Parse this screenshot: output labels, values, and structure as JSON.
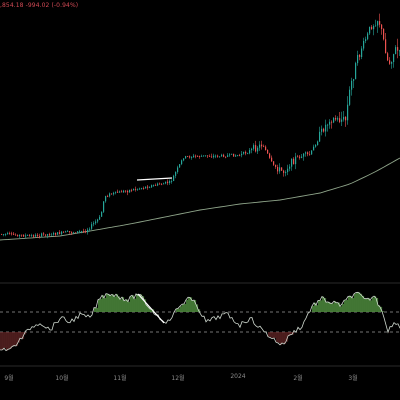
{
  "header": {
    "price_text": ",854.18 -994.02 (-0.94%)"
  },
  "colors": {
    "background": "#000000",
    "up_candle": "#26a69a",
    "down_candle": "#ef5350",
    "moving_average": "#8fa58a",
    "rsi_line": "#cfd8cf",
    "rsi_fill_up": "#4c8a3c",
    "rsi_fill_down": "#7a2f2f",
    "rsi_band": "#9a9a9a",
    "trendline": "#ffffff",
    "axis_text": "#8c8c8c",
    "separator": "#2a2a2a"
  },
  "time_axis": {
    "labels": [
      "9월",
      "10월",
      "11월",
      "12월",
      "2024",
      "2월",
      "3월"
    ]
  },
  "chart_data": {
    "type": "candlestick",
    "series": [
      {
        "name": "",
        "kind": "price"
      },
      {
        "name": "",
        "kind": "moving-average"
      },
      {
        "name": "",
        "kind": "rsi"
      }
    ],
    "rsi_bands": [
      70,
      30
    ],
    "rsi_ylim": [
      0,
      100
    ],
    "trendlines": [
      {
        "pane": "price",
        "direction": "flat"
      },
      {
        "pane": "rsi",
        "direction": "down"
      }
    ]
  }
}
